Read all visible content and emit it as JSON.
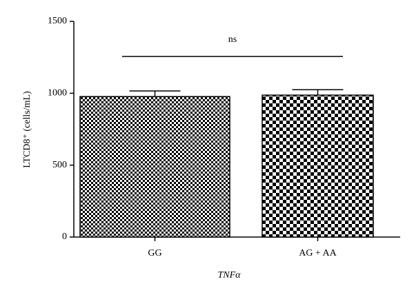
{
  "chart_data": {
    "type": "bar",
    "categories": [
      "GG",
      "AG + AA"
    ],
    "values": [
      977,
      987
    ],
    "errors": [
      39,
      38
    ],
    "color": "#000000",
    "ylim": [
      0,
      1500
    ],
    "yticks": [
      0,
      500,
      1000,
      1500
    ],
    "ylabel": "LTCD8⁺ (cells/mL)",
    "xlabel": "TNFα",
    "annotation": {
      "text": "ns",
      "value": 1256
    }
  }
}
